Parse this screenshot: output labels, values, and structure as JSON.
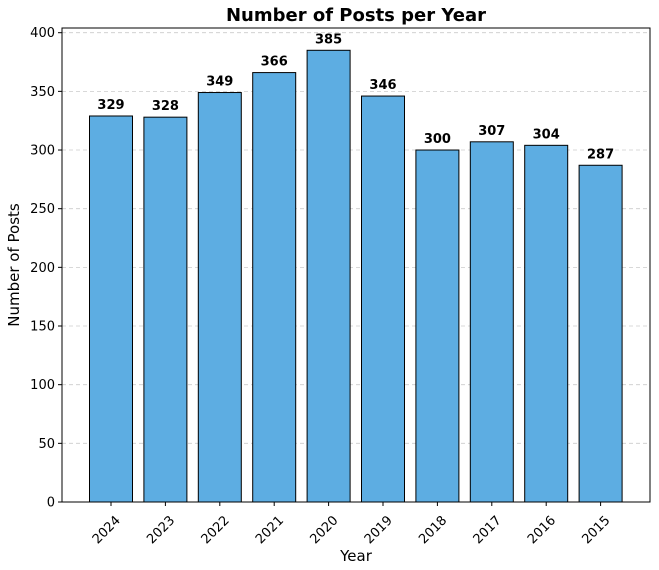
{
  "chart_data": {
    "type": "bar",
    "title": "Number of Posts per Year",
    "xlabel": "Year",
    "ylabel": "Number of Posts",
    "categories": [
      "2024",
      "2023",
      "2022",
      "2021",
      "2020",
      "2019",
      "2018",
      "2017",
      "2016",
      "2015"
    ],
    "values": [
      329,
      328,
      349,
      366,
      385,
      346,
      300,
      307,
      304,
      287
    ],
    "ylim": [
      0,
      404
    ],
    "yticks": [
      0,
      50,
      100,
      150,
      200,
      250,
      300,
      350,
      400
    ],
    "grid": "y-dashed",
    "xtick_rotation_deg": 45,
    "data_labels": true,
    "colors": {
      "bar_fill": "#5DADE2",
      "bar_edge": "#000000",
      "grid": "#cccccc",
      "axis": "#000000"
    }
  }
}
